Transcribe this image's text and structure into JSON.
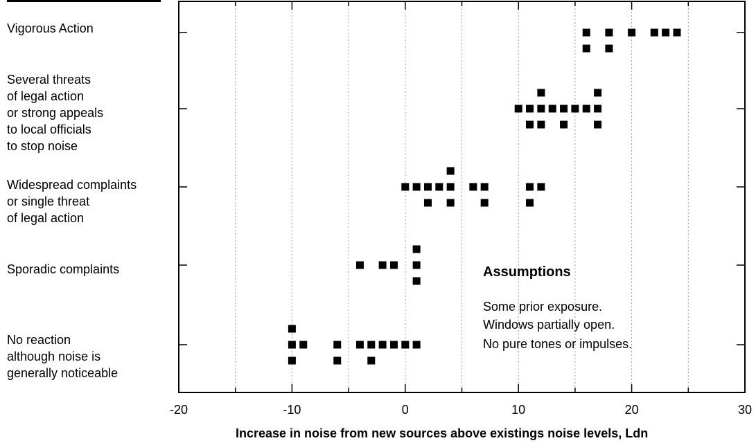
{
  "chart_data": {
    "type": "scatter",
    "xlabel": "Increase in noise from new sources above existings noise levels, Ldn",
    "ylabel": "",
    "xlim": [
      -20,
      30
    ],
    "xticks": [
      -20,
      -10,
      0,
      10,
      20,
      30
    ],
    "x_gridlines": [
      -15,
      -10,
      -5,
      0,
      5,
      10,
      15,
      20,
      25
    ],
    "grid": "vertical dotted",
    "categories": [
      "No reaction\nalthough noise is\ngenerally noticeable",
      "Sporadic complaints",
      "Widespread complaints\nor single threat\nof legal action",
      "Several threats\nof legal action\nor strong appeals\nto local officials\nto stop noise",
      "Vigorous Action"
    ],
    "points": [
      {
        "x": -10,
        "cat": 0,
        "off": 1
      },
      {
        "x": -10,
        "cat": 0,
        "off": 0
      },
      {
        "x": -9,
        "cat": 0,
        "off": 0
      },
      {
        "x": -10,
        "cat": 0,
        "off": -1
      },
      {
        "x": -6,
        "cat": 0,
        "off": 0
      },
      {
        "x": -6,
        "cat": 0,
        "off": -1
      },
      {
        "x": -4,
        "cat": 0,
        "off": 0
      },
      {
        "x": -3,
        "cat": 0,
        "off": 0
      },
      {
        "x": -3,
        "cat": 0,
        "off": -1
      },
      {
        "x": -2,
        "cat": 0,
        "off": 0
      },
      {
        "x": -1,
        "cat": 0,
        "off": 0
      },
      {
        "x": 0,
        "cat": 0,
        "off": 0
      },
      {
        "x": 1,
        "cat": 0,
        "off": 0
      },
      {
        "x": -4,
        "cat": 1,
        "off": 0
      },
      {
        "x": -2,
        "cat": 1,
        "off": 0
      },
      {
        "x": -1,
        "cat": 1,
        "off": 0
      },
      {
        "x": 1,
        "cat": 1,
        "off": 1
      },
      {
        "x": 1,
        "cat": 1,
        "off": 0
      },
      {
        "x": 1,
        "cat": 1,
        "off": -1
      },
      {
        "x": 0,
        "cat": 2,
        "off": 0
      },
      {
        "x": 1,
        "cat": 2,
        "off": 0
      },
      {
        "x": 2,
        "cat": 2,
        "off": 0
      },
      {
        "x": 2,
        "cat": 2,
        "off": -1
      },
      {
        "x": 3,
        "cat": 2,
        "off": 0
      },
      {
        "x": 4,
        "cat": 2,
        "off": 1
      },
      {
        "x": 4,
        "cat": 2,
        "off": 0
      },
      {
        "x": 4,
        "cat": 2,
        "off": -1
      },
      {
        "x": 6,
        "cat": 2,
        "off": 0
      },
      {
        "x": 7,
        "cat": 2,
        "off": 0
      },
      {
        "x": 7,
        "cat": 2,
        "off": -1
      },
      {
        "x": 11,
        "cat": 2,
        "off": 0
      },
      {
        "x": 11,
        "cat": 2,
        "off": -1
      },
      {
        "x": 12,
        "cat": 2,
        "off": 0
      },
      {
        "x": 10,
        "cat": 3,
        "off": 0
      },
      {
        "x": 11,
        "cat": 3,
        "off": 0
      },
      {
        "x": 11,
        "cat": 3,
        "off": -1
      },
      {
        "x": 12,
        "cat": 3,
        "off": 1
      },
      {
        "x": 12,
        "cat": 3,
        "off": 0
      },
      {
        "x": 12,
        "cat": 3,
        "off": -1
      },
      {
        "x": 13,
        "cat": 3,
        "off": 0
      },
      {
        "x": 14,
        "cat": 3,
        "off": 0
      },
      {
        "x": 14,
        "cat": 3,
        "off": -1
      },
      {
        "x": 15,
        "cat": 3,
        "off": 0
      },
      {
        "x": 16,
        "cat": 3,
        "off": 0
      },
      {
        "x": 17,
        "cat": 3,
        "off": 1
      },
      {
        "x": 17,
        "cat": 3,
        "off": 0
      },
      {
        "x": 17,
        "cat": 3,
        "off": -1
      },
      {
        "x": 16,
        "cat": 4,
        "off": 0
      },
      {
        "x": 16,
        "cat": 4,
        "off": -1
      },
      {
        "x": 18,
        "cat": 4,
        "off": 0
      },
      {
        "x": 18,
        "cat": 4,
        "off": -1
      },
      {
        "x": 20,
        "cat": 4,
        "off": 0
      },
      {
        "x": 22,
        "cat": 4,
        "off": 0
      },
      {
        "x": 23,
        "cat": 4,
        "off": 0
      },
      {
        "x": 24,
        "cat": 4,
        "off": 0
      }
    ]
  },
  "assumptions": {
    "title": "Assumptions",
    "lines": [
      "Some prior exposure.",
      "Windows partially open.",
      "No pure tones or impulses."
    ]
  },
  "colors": {
    "marker": "#000000",
    "grid": "#9a9a9a",
    "axis": "#000000"
  }
}
